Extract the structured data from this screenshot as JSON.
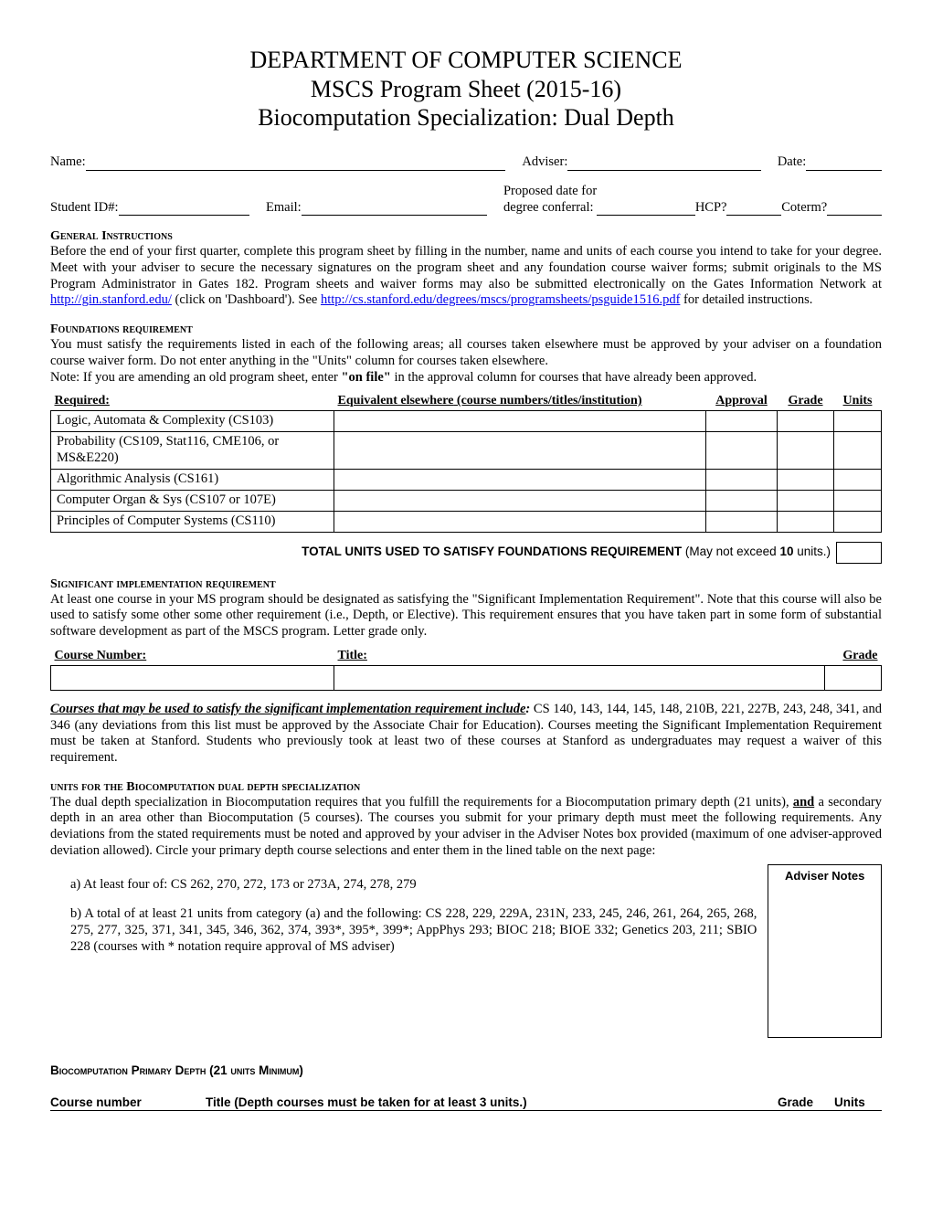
{
  "header": {
    "line1": "DEPARTMENT OF COMPUTER SCIENCE",
    "line2": "MSCS Program Sheet (2015-16)",
    "line3": "Biocomputation Specialization: Dual Depth"
  },
  "form": {
    "name": "Name:",
    "adviser": "Adviser:",
    "date": "Date:",
    "student_id": "Student ID#:",
    "email": "Email:",
    "proposed_label_1": "Proposed date for",
    "proposed_label_2": "degree conferral:",
    "hcp": "HCP?",
    "coterm": "Coterm?"
  },
  "general": {
    "head": "General Instructions",
    "body_1": "Before the end of your first quarter, complete this program sheet by filling in the number, name and units of each course you intend to take for your degree.  Meet with your adviser to secure the necessary signatures on the program sheet and any foundation course waiver forms; submit originals to the MS Program Administrator in Gates 182.  Program sheets and waiver forms may also be submitted electronically on the Gates Information Network at ",
    "link1": "http://gin.stanford.edu/",
    "body_2": " (click on 'Dashboard'). See ",
    "link2": "http://cs.stanford.edu/degrees/mscs/programsheets/psguide1516.pdf",
    "body_3": " for detailed instructions."
  },
  "foundations": {
    "head": "Foundations requirement",
    "para1": "You must satisfy the requirements listed in each of the following areas; all courses taken elsewhere must be approved by your adviser on a foundation course waiver form.  Do not enter anything in the \"Units\" column for courses taken elsewhere.",
    "para2_a": "Note: If you are amending an old program sheet, enter ",
    "para2_bold": "\"on file\"",
    "para2_b": " in the approval column for courses that have already been approved.",
    "cols": {
      "required": "Required:",
      "equiv_a": "Equivalent elsewhere",
      "equiv_b": " (course numbers/titles/institution)",
      "approval": "Approval",
      "grade": "Grade",
      "units": "Units"
    },
    "rows": [
      "Logic, Automata & Complexity (CS103)",
      "Probability (CS109, Stat116, CME106, or MS&E220)",
      "Algorithmic Analysis (CS161)",
      "Computer Organ & Sys (CS107 or 107E)",
      "Principles of Computer Systems  (CS110)"
    ],
    "total_a": "TOTAL UNITS USED TO SATISFY FOUNDATIONS REQUIREMENT",
    "total_b": " (May not exceed ",
    "total_c": "10",
    "total_d": " units.)"
  },
  "sig": {
    "head": "Significant implementation requirement",
    "para": "At least one course in your MS program should be designated as satisfying the \"Significant Implementation Requirement\".  Note that this course will also be used to satisfy some other some other requirement (i.e., Depth, or Elective).  This requirement ensures that you have taken part in some form of substantial software development as part of the MSCS program. Letter grade only.",
    "cols": {
      "num": "Course Number:",
      "title": "Title:",
      "grade": "Grade"
    },
    "after_a": "Courses that may be used to satisfy the significant implementation requirement include",
    "after_colon": ":",
    "after_b": " CS 140, 143, 144, 145, 148, 210B, 221, 227B, 243, 248, 341, and 346 (any deviations from this list must be approved by the Associate Chair for Education).  Courses meeting the Significant Implementation Requirement must be taken at Stanford.  Students who previously took at least two of these courses at Stanford as undergraduates may request a waiver of this requirement."
  },
  "depth": {
    "head": "units for the Biocomputation dual depth specialization",
    "para_a": "The dual depth specialization in Biocomputation requires that you fulfill the requirements for a Biocomputation primary depth (21 units), ",
    "and": "and",
    "para_b": " a secondary depth in an area other than Biocomputation (5 courses). The courses you submit for your primary depth must meet the following requirements.  Any deviations from the stated requirements must be noted and approved by your adviser in the Adviser Notes box provided (maximum of one adviser-approved deviation allowed).  Circle your primary depth course selections and enter them in the lined table on the next page:",
    "item_a": "a) At least four of: CS 262, 270, 272, 173 or 273A, 274, 278, 279",
    "item_b": "b) A total of at least 21 units from category (a) and the following: CS 228, 229, 229A, 231N, 233, 245, 246, 261, 264, 265, 268, 275, 277, 325, 371, 341, 345, 346, 362, 374, 393*, 395*, 399*; AppPhys 293; BIOC 218; BIOE 332; Genetics 203, 211; SBIO 228 (courses with * notation require approval of MS adviser)",
    "adviser_notes": "Adviser Notes"
  },
  "primary": {
    "head": "Biocomputation Primary Depth (21 units Minimum)",
    "cols": {
      "num": "Course number",
      "title": "Title (Depth courses must be taken for at least 3 units.)",
      "grade": "Grade",
      "units": "Units"
    }
  }
}
